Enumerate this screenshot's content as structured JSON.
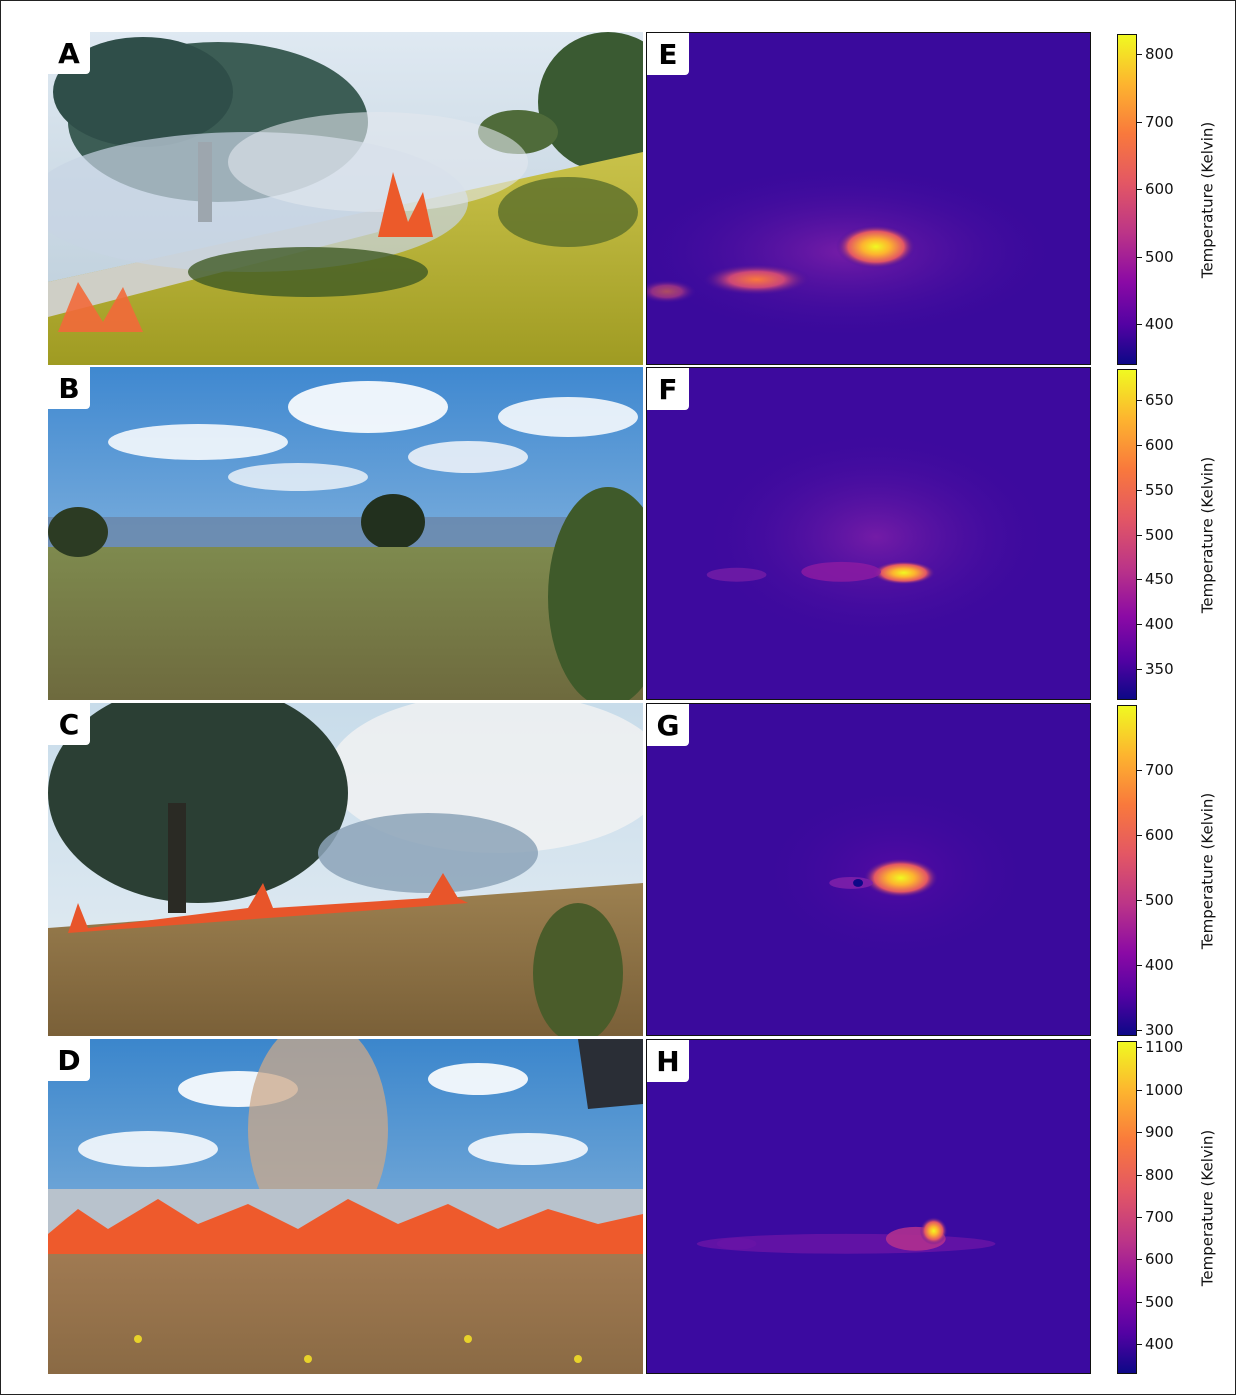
{
  "panels": {
    "A": {
      "label": "A"
    },
    "B": {
      "label": "B"
    },
    "C": {
      "label": "C"
    },
    "D": {
      "label": "D"
    },
    "E": {
      "label": "E"
    },
    "F": {
      "label": "F"
    },
    "G": {
      "label": "G"
    },
    "H": {
      "label": "H"
    }
  },
  "colorbars": [
    {
      "title": "Temperature (Kelvin)",
      "ticks": [
        "800",
        "700",
        "600",
        "500",
        "400"
      ],
      "min": 340,
      "max": 830,
      "values": [
        800,
        700,
        600,
        500,
        400
      ]
    },
    {
      "title": "Temperature (Kelvin)",
      "ticks": [
        "650",
        "600",
        "550",
        "500",
        "450",
        "400",
        "350"
      ],
      "min": 315,
      "max": 685,
      "values": [
        650,
        600,
        550,
        500,
        450,
        400,
        350
      ]
    },
    {
      "title": "Temperature (Kelvin)",
      "ticks": [
        "700",
        "600",
        "500",
        "400",
        "300"
      ],
      "min": 290,
      "max": 800,
      "values": [
        700,
        600,
        500,
        400,
        300
      ]
    },
    {
      "title": "Temperature (Kelvin)",
      "ticks": [
        "1100",
        "1000",
        "900",
        "800",
        "700",
        "600",
        "500",
        "400"
      ],
      "min": 330,
      "max": 1115,
      "values": [
        1100,
        1000,
        900,
        800,
        700,
        600,
        500,
        400
      ]
    }
  ],
  "colors": {
    "thermal_background": "#3b0a9e",
    "hot": "#f0f921",
    "warm": "#f9793c",
    "smoke": "#c8d4e4"
  }
}
